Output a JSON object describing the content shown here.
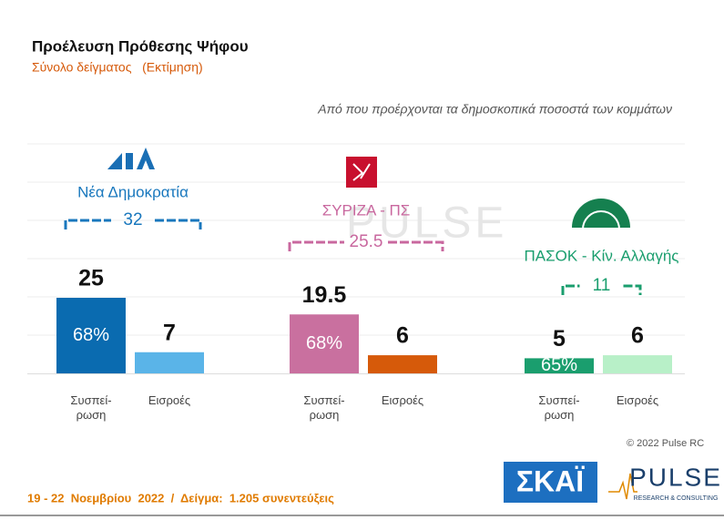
{
  "chart_data": {
    "type": "bar",
    "title": "Προέλευση Πρόθεσης Ψήφου",
    "subtitle": "Σύνολο δείγματος   (Εκτίμηση)",
    "annotation": "Από που προέρχονται τα δημοσκοπικά ποσοστά των κομμάτων",
    "categories": [
      "Συσπεί-ρωση",
      "Εισροές"
    ],
    "ylim": [
      0,
      30
    ],
    "series": [
      {
        "name": "Νέα Δημοκρατία",
        "color": "#1877bd",
        "colors": [
          "#0a6bb0",
          "#5ab4e8"
        ],
        "total": 32,
        "values": [
          25,
          7
        ],
        "share": 68,
        "share_label": "68%"
      },
      {
        "name": "ΣΥΡΙΖΑ - ΠΣ",
        "color": "#c9689f",
        "colors": [
          "#c9709f",
          "#d65a0a"
        ],
        "total": 25.5,
        "values": [
          19.5,
          6
        ],
        "share": 68,
        "share_label": "68%"
      },
      {
        "name": "ΠΑΣΟΚ - Κίν. Αλλαγής",
        "color": "#1a9e6e",
        "colors": [
          "#1a9e6e",
          "#b8f0c8"
        ],
        "total": 11,
        "values": [
          5,
          6
        ],
        "share": 65,
        "share_label": "65%"
      }
    ],
    "copyright": "© 2022 Pulse RC",
    "footer": "19 - 22  Νοεμβρίου  2022  /  Δείγμα:  1.205 συνεντεύξεις",
    "logos": {
      "skai": "ΣΚΑΪ",
      "pulse": "PULSE",
      "pulse_sub": "RESEARCH & CONSULTING"
    }
  }
}
